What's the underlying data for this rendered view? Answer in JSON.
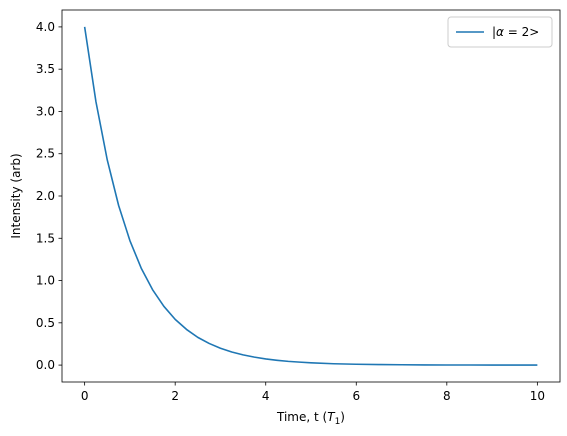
{
  "chart_data": {
    "type": "line",
    "xlabel_prefix": "Time, t (",
    "xlabel_var": "T",
    "xlabel_sub": "1",
    "xlabel_suffix": ")",
    "ylabel": "Intensity (arb)",
    "xlim": [
      -0.5,
      10.5
    ],
    "ylim": [
      -0.2,
      4.2
    ],
    "xticks": [
      0,
      2,
      4,
      6,
      8,
      10
    ],
    "xtick_labels": [
      "0",
      "2",
      "4",
      "6",
      "8",
      "10"
    ],
    "yticks": [
      0.0,
      0.5,
      1.0,
      1.5,
      2.0,
      2.5,
      3.0,
      3.5,
      4.0
    ],
    "ytick_labels": [
      "0.0",
      "0.5",
      "1.0",
      "1.5",
      "2.0",
      "2.5",
      "3.0",
      "3.5",
      "4.0"
    ],
    "grid": false,
    "legend_position": "top-right",
    "series": [
      {
        "name": "|α = 2>",
        "name_parts": [
          "|",
          "α",
          " = 2>"
        ],
        "color": "#1f77b4",
        "x": [
          0,
          0.25,
          0.5,
          0.75,
          1.0,
          1.25,
          1.5,
          1.75,
          2.0,
          2.25,
          2.5,
          2.75,
          3.0,
          3.25,
          3.5,
          3.75,
          4.0,
          4.25,
          4.5,
          4.75,
          5.0,
          5.5,
          6.0,
          6.5,
          7.0,
          7.5,
          8.0,
          8.5,
          9.0,
          9.5,
          10.0
        ],
        "y": [
          4.0,
          3.115,
          2.426,
          1.889,
          1.472,
          1.146,
          0.892,
          0.695,
          0.541,
          0.422,
          0.328,
          0.256,
          0.199,
          0.155,
          0.121,
          0.094,
          0.073,
          0.057,
          0.044,
          0.035,
          0.027,
          0.016,
          0.01,
          0.006,
          0.004,
          0.002,
          0.001,
          0.001,
          0.0005,
          0.0003,
          0.0002
        ]
      }
    ]
  }
}
